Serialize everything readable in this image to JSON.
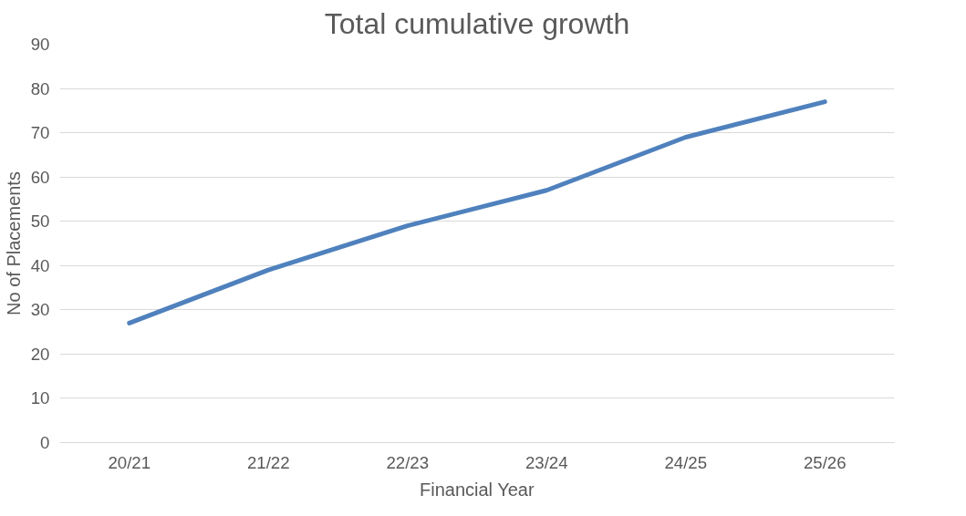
{
  "chart_data": {
    "type": "line",
    "title": "Total cumulative growth",
    "xlabel": "Financial Year",
    "ylabel": "No of Placements",
    "categories": [
      "20/21",
      "21/22",
      "22/23",
      "23/24",
      "24/25",
      "25/26"
    ],
    "series": [
      {
        "color": "#4f81bd",
        "values": [
          27,
          39,
          49,
          57,
          69,
          77
        ]
      }
    ],
    "ylim": [
      0,
      90
    ],
    "yticks": [
      0,
      10,
      20,
      30,
      40,
      50,
      60,
      70,
      80,
      90
    ],
    "grid": "y",
    "marker": "none",
    "line_style": "solid"
  }
}
